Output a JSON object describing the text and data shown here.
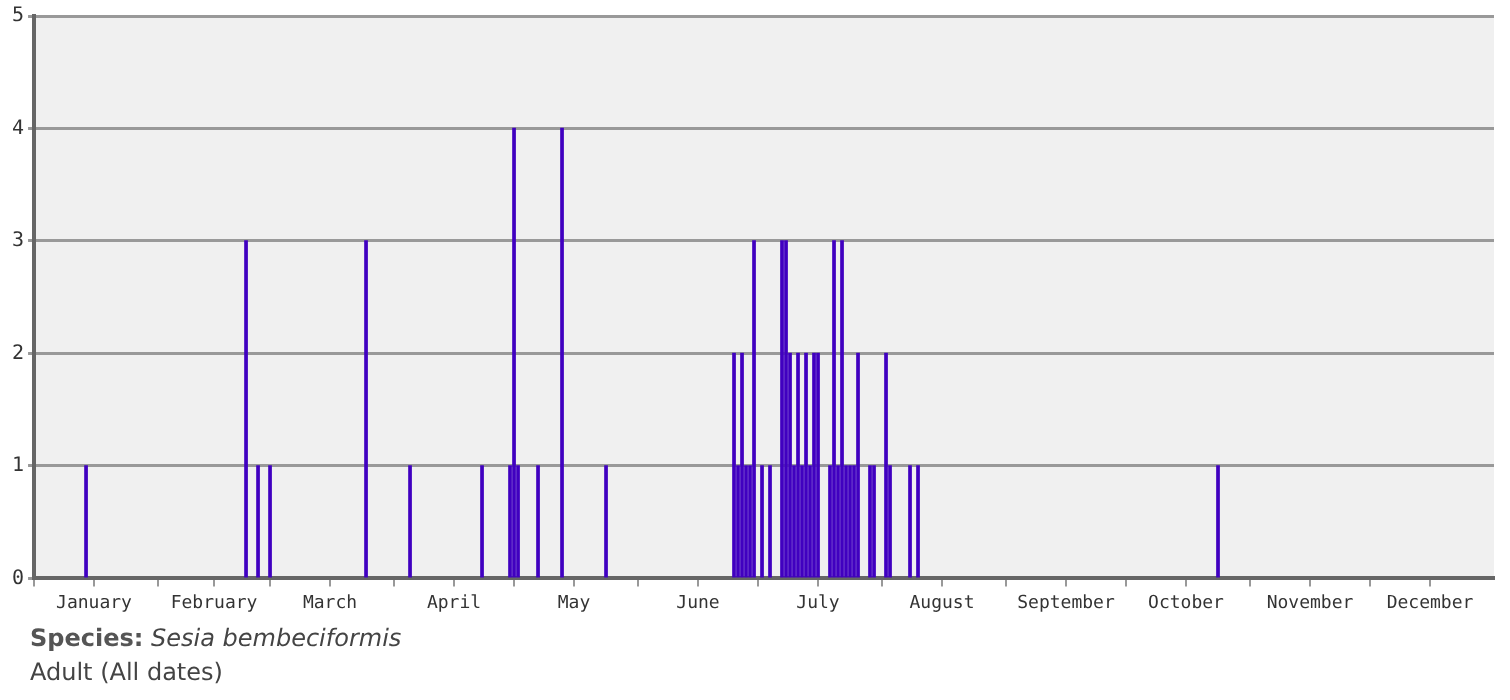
{
  "chart_data": {
    "type": "bar",
    "color": "#4000c0",
    "x": [
      "--01-14",
      "--02-23",
      "--02-26",
      "--03-01",
      "--03-25",
      "--04-05",
      "--04-23",
      "--04-30",
      "--05-01",
      "--05-02",
      "--05-07",
      "--05-13",
      "--05-24",
      "--06-25",
      "--06-26",
      "--06-27",
      "--06-28",
      "--06-29",
      "--06-30",
      "--07-02",
      "--07-04",
      "--07-07",
      "--07-08",
      "--07-09",
      "--07-10",
      "--07-11",
      "--07-12",
      "--07-13",
      "--07-14",
      "--07-15",
      "--07-16",
      "--07-19",
      "--07-20",
      "--07-21",
      "--07-22",
      "--07-23",
      "--07-24",
      "--07-25",
      "--07-26",
      "--07-29",
      "--07-30",
      "--08-02",
      "--08-03",
      "--08-08",
      "--08-10",
      "--10-24"
    ],
    "values": [
      1,
      3,
      1,
      1,
      3,
      1,
      1,
      1,
      4,
      1,
      1,
      4,
      1,
      2,
      1,
      2,
      1,
      1,
      3,
      1,
      1,
      3,
      3,
      2,
      1,
      2,
      1,
      2,
      1,
      2,
      2,
      1,
      3,
      1,
      3,
      1,
      1,
      1,
      2,
      1,
      1,
      2,
      1,
      1,
      1,
      1
    ],
    "xlim": [
      "--01-01",
      "--12-31"
    ],
    "xticks": [
      {
        "value": "--01-01",
        "label": null
      },
      {
        "value": "--01-16",
        "label": "January"
      },
      {
        "value": "--02-01",
        "label": null
      },
      {
        "value": "--02-15",
        "label": "February"
      },
      {
        "value": "--03-01",
        "label": null
      },
      {
        "value": "--03-16",
        "label": "March"
      },
      {
        "value": "--04-01",
        "label": null
      },
      {
        "value": "--04-16",
        "label": "April"
      },
      {
        "value": "--05-01",
        "label": null
      },
      {
        "value": "--05-16",
        "label": "May"
      },
      {
        "value": "--06-01",
        "label": null
      },
      {
        "value": "--06-16",
        "label": "June"
      },
      {
        "value": "--07-01",
        "label": null
      },
      {
        "value": "--07-16",
        "label": "July"
      },
      {
        "value": "--08-01",
        "label": null
      },
      {
        "value": "--08-16",
        "label": "August"
      },
      {
        "value": "--09-01",
        "label": null
      },
      {
        "value": "--09-16",
        "label": "September"
      },
      {
        "value": "--10-01",
        "label": null
      },
      {
        "value": "--10-16",
        "label": "October"
      },
      {
        "value": "--11-01",
        "label": null
      },
      {
        "value": "--11-16",
        "label": "November"
      },
      {
        "value": "--12-01",
        "label": null
      },
      {
        "value": "--12-16",
        "label": "December"
      }
    ],
    "ylim": [
      0,
      5
    ],
    "yticks": [
      0,
      1,
      2,
      3,
      4,
      5
    ],
    "grid": "y",
    "legend": false,
    "annotations": [
      "Species: Sesia bembeciformis",
      "Adult (All dates)"
    ]
  }
}
